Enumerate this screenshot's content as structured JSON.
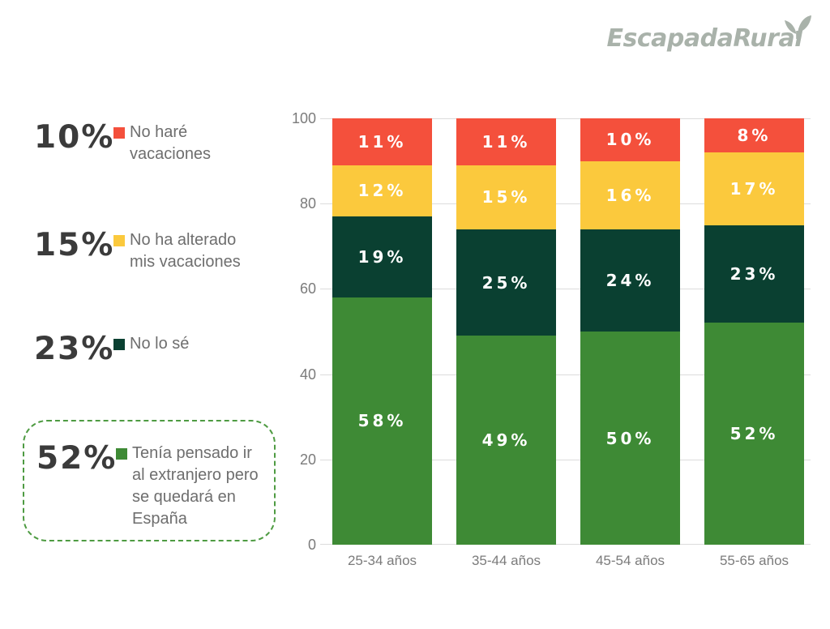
{
  "logo": {
    "text": "EscapadaRural"
  },
  "legend": {
    "highlight_border": "#4e9b42",
    "items": [
      {
        "pct": "10%",
        "label": "No haré\nvacaciones",
        "color": "#f4503c"
      },
      {
        "pct": "15%",
        "label": "No ha alterado\nmis vacaciones",
        "color": "#fbc93d"
      },
      {
        "pct": "23%",
        "label": "No lo sé",
        "color": "#0a4031"
      },
      {
        "pct": "52%",
        "label": "Tenía pensado ir\nal extranjero pero\nse quedará en\nEspaña",
        "color": "#3e8a35",
        "highlighted": true
      }
    ]
  },
  "chart_data": {
    "type": "bar",
    "stacked": true,
    "orientation": "vertical",
    "categories": [
      "25-34 años",
      "35-44 años",
      "45-54 años",
      "55-65 años"
    ],
    "series": [
      {
        "name": "Tenía pensado ir al extranjero pero se quedará en España",
        "color": "#3e8a35",
        "values": [
          58,
          49,
          50,
          52
        ]
      },
      {
        "name": "No lo sé",
        "color": "#0a4031",
        "values": [
          19,
          25,
          24,
          23
        ]
      },
      {
        "name": "No ha alterado mis vacaciones",
        "color": "#fbc93d",
        "values": [
          12,
          15,
          16,
          17
        ]
      },
      {
        "name": "No haré vacaciones",
        "color": "#f4503c",
        "values": [
          11,
          11,
          10,
          8
        ]
      }
    ],
    "ylim": [
      0,
      100
    ],
    "yticks": [
      0,
      20,
      40,
      60,
      80,
      100
    ],
    "grid": true,
    "legend_position": "left",
    "value_label_format": "{v}%",
    "colors": {
      "grid": "#dcdcdc",
      "axis_text": "#7b7b7b",
      "bar_label": "#ffffff"
    }
  }
}
